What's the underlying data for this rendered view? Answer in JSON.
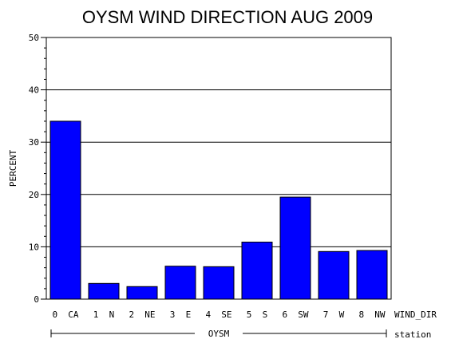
{
  "chart_data": {
    "type": "bar",
    "title": "OYSM WIND DIRECTION AUG 2009",
    "ylabel": "PERCENT",
    "xlabel": "WIND_DIR",
    "group_label": "OYSM",
    "group_axis_label": "station",
    "ylim": [
      0,
      50
    ],
    "yticks": [
      0,
      10,
      20,
      30,
      40,
      50
    ],
    "grid": true,
    "categories": [
      "0 CA",
      "1 N",
      "2 NE",
      "3 E",
      "4 SE",
      "5 S",
      "6 SW",
      "7 W",
      "8 NW"
    ],
    "values": [
      34.0,
      3.0,
      2.4,
      6.3,
      6.2,
      10.9,
      19.5,
      9.1,
      9.3
    ],
    "bar_color": "#0000ff"
  }
}
